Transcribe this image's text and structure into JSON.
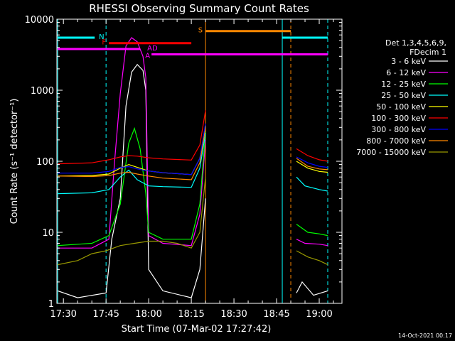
{
  "chart_data": {
    "type": "line",
    "title": "RHESSI Observing Summary Count Rates",
    "xlabel": "Start Time (07-Mar-02 17:27:42)",
    "ylabel": "Count Rate (s⁻¹ detector⁻¹)",
    "yscale": "log",
    "ylim": [
      1,
      10000
    ],
    "xlim": [
      "17:27:42",
      "19:08:00"
    ],
    "xticks": [
      {
        "t": "17:30",
        "label": "17:30"
      },
      {
        "t": "17:45",
        "label": "17:45"
      },
      {
        "t": "18:00",
        "label": "18:00"
      },
      {
        "t": "18:15",
        "label": "18:15"
      },
      {
        "t": "18:30",
        "label": "18:30"
      },
      {
        "t": "18:45",
        "label": "18:45"
      },
      {
        "t": "19:00",
        "label": "19:00"
      }
    ],
    "yticks": [
      {
        "v": 1,
        "label": "1"
      },
      {
        "v": 10,
        "label": "10"
      },
      {
        "v": 100,
        "label": "100"
      },
      {
        "v": 1000,
        "label": "1000"
      },
      {
        "v": 10000,
        "label": "10000"
      }
    ],
    "legend_header": [
      "Det 1,3,4,5,6,9,",
      "FDecim 1"
    ],
    "legend_position": "right",
    "series": [
      {
        "name": "3 - 6 keV",
        "color": "#ffffff",
        "points": [
          [
            "17:28",
            1.5
          ],
          [
            "17:35",
            1.2
          ],
          [
            "17:45",
            1.4
          ],
          [
            "17:47",
            8
          ],
          [
            "17:50",
            30
          ],
          [
            "17:52",
            600
          ],
          [
            "17:54",
            1800
          ],
          [
            "17:56",
            2300
          ],
          [
            "17:58",
            1900
          ],
          [
            "17:59",
            1000
          ],
          [
            "18:00",
            3
          ],
          [
            "18:05",
            1.5
          ],
          [
            "18:15",
            1.2
          ],
          [
            "18:18",
            3
          ],
          [
            "18:20",
            30
          ],
          [
            "18:21",
            null
          ],
          [
            "18:52",
            1.4
          ],
          [
            "18:54",
            2
          ],
          [
            "18:58",
            1.3
          ],
          [
            "19:03",
            1.5
          ]
        ]
      },
      {
        "name": "6 - 12 keV",
        "color": "#ff00ff",
        "points": [
          [
            "17:28",
            6
          ],
          [
            "17:40",
            6
          ],
          [
            "17:46",
            8
          ],
          [
            "17:48",
            100
          ],
          [
            "17:50",
            900
          ],
          [
            "17:52",
            4200
          ],
          [
            "17:54",
            5500
          ],
          [
            "17:56",
            4800
          ],
          [
            "17:58",
            3000
          ],
          [
            "17:59",
            1500
          ],
          [
            "18:00",
            9
          ],
          [
            "18:05",
            7
          ],
          [
            "18:15",
            6.5
          ],
          [
            "18:18",
            18
          ],
          [
            "18:20",
            200
          ],
          [
            "18:21",
            null
          ],
          [
            "18:52",
            8
          ],
          [
            "18:55",
            7
          ],
          [
            "19:00",
            6.8
          ],
          [
            "19:03",
            6.5
          ]
        ]
      },
      {
        "name": "12 - 25 keV",
        "color": "#00ff00",
        "points": [
          [
            "17:28",
            6.5
          ],
          [
            "17:40",
            7
          ],
          [
            "17:46",
            9
          ],
          [
            "17:50",
            25
          ],
          [
            "17:53",
            180
          ],
          [
            "17:55",
            290
          ],
          [
            "17:57",
            150
          ],
          [
            "17:59",
            35
          ],
          [
            "18:00",
            10
          ],
          [
            "18:05",
            8
          ],
          [
            "18:15",
            8
          ],
          [
            "18:18",
            25
          ],
          [
            "18:20",
            260
          ],
          [
            "18:21",
            null
          ],
          [
            "18:52",
            13
          ],
          [
            "18:56",
            10
          ],
          [
            "19:00",
            9.5
          ],
          [
            "19:03",
            9
          ]
        ]
      },
      {
        "name": "25 - 50 keV",
        "color": "#00ffff",
        "points": [
          [
            "17:28",
            35
          ],
          [
            "17:40",
            36
          ],
          [
            "17:46",
            40
          ],
          [
            "17:50",
            60
          ],
          [
            "17:53",
            75
          ],
          [
            "17:56",
            55
          ],
          [
            "18:00",
            45
          ],
          [
            "18:05",
            44
          ],
          [
            "18:15",
            43
          ],
          [
            "18:18",
            80
          ],
          [
            "18:20",
            250
          ],
          [
            "18:21",
            null
          ],
          [
            "18:52",
            60
          ],
          [
            "18:55",
            45
          ],
          [
            "19:00",
            40
          ],
          [
            "19:03",
            38
          ]
        ]
      },
      {
        "name": "50 - 100 keV",
        "color": "#ffff00",
        "points": [
          [
            "17:28",
            62
          ],
          [
            "17:40",
            63
          ],
          [
            "17:46",
            66
          ],
          [
            "17:50",
            80
          ],
          [
            "17:53",
            90
          ],
          [
            "17:56",
            82
          ],
          [
            "18:00",
            73
          ],
          [
            "18:05",
            69
          ],
          [
            "18:15",
            65
          ],
          [
            "18:18",
            110
          ],
          [
            "18:20",
            310
          ],
          [
            "18:21",
            null
          ],
          [
            "18:52",
            100
          ],
          [
            "18:56",
            80
          ],
          [
            "19:00",
            72
          ],
          [
            "19:03",
            70
          ]
        ]
      },
      {
        "name": "100 - 300 keV",
        "color": "#ff0000",
        "points": [
          [
            "17:28",
            92
          ],
          [
            "17:40",
            95
          ],
          [
            "17:46",
            105
          ],
          [
            "17:50",
            115
          ],
          [
            "17:53",
            120
          ],
          [
            "17:56",
            118
          ],
          [
            "18:00",
            112
          ],
          [
            "18:05",
            108
          ],
          [
            "18:15",
            104
          ],
          [
            "18:18",
            170
          ],
          [
            "18:20",
            520
          ],
          [
            "18:21",
            null
          ],
          [
            "18:52",
            150
          ],
          [
            "18:56",
            120
          ],
          [
            "19:00",
            105
          ],
          [
            "19:03",
            100
          ]
        ]
      },
      {
        "name": "300 - 800 keV",
        "color": "#0000ff",
        "points": [
          [
            "17:28",
            68
          ],
          [
            "17:40",
            68
          ],
          [
            "17:46",
            72
          ],
          [
            "17:50",
            82
          ],
          [
            "17:53",
            84
          ],
          [
            "17:56",
            78
          ],
          [
            "18:00",
            73
          ],
          [
            "18:05",
            69
          ],
          [
            "18:15",
            65
          ],
          [
            "18:18",
            110
          ],
          [
            "18:20",
            340
          ],
          [
            "18:21",
            null
          ],
          [
            "18:52",
            115
          ],
          [
            "18:56",
            95
          ],
          [
            "19:00",
            85
          ],
          [
            "19:03",
            82
          ]
        ]
      },
      {
        "name": "800 - 7000 keV",
        "color": "#ff8800",
        "points": [
          [
            "17:28",
            62
          ],
          [
            "17:40",
            61
          ],
          [
            "17:46",
            63
          ],
          [
            "17:50",
            68
          ],
          [
            "17:53",
            70
          ],
          [
            "17:56",
            66
          ],
          [
            "18:00",
            62
          ],
          [
            "18:05",
            58
          ],
          [
            "18:15",
            55
          ],
          [
            "18:18",
            95
          ],
          [
            "18:20",
            290
          ],
          [
            "18:21",
            null
          ],
          [
            "18:52",
            110
          ],
          [
            "18:56",
            85
          ],
          [
            "19:00",
            78
          ],
          [
            "19:03",
            76
          ]
        ]
      },
      {
        "name": "7000 - 15000 keV",
        "color": "#999900",
        "points": [
          [
            "17:28",
            3.5
          ],
          [
            "17:35",
            4
          ],
          [
            "17:40",
            5
          ],
          [
            "17:45",
            5.5
          ],
          [
            "17:50",
            6.5
          ],
          [
            "17:55",
            7
          ],
          [
            "18:00",
            7.5
          ],
          [
            "18:05",
            7.5
          ],
          [
            "18:10",
            7
          ],
          [
            "18:15",
            6
          ],
          [
            "18:18",
            10
          ],
          [
            "18:20",
            60
          ],
          [
            "18:21",
            null
          ],
          [
            "18:52",
            5.5
          ],
          [
            "18:56",
            4.5
          ],
          [
            "19:00",
            4
          ],
          [
            "19:03",
            3.5
          ]
        ]
      }
    ],
    "flag_bars": [
      {
        "label": "N",
        "color": "#00ffff",
        "value": 5500,
        "segments": [
          [
            "17:28",
            "17:41"
          ],
          [
            "18:47",
            "19:03"
          ]
        ]
      },
      {
        "label": "F",
        "color": "#ff0000",
        "value": 4600,
        "segments": [
          [
            "17:46",
            "18:15"
          ]
        ]
      },
      {
        "label": "AD",
        "color": "#ff00ff",
        "value": 3800,
        "segments": [
          [
            "17:28",
            "17:57"
          ]
        ]
      },
      {
        "label": "A",
        "color": "#ff00ff",
        "value": 3200,
        "segments": [
          [
            "18:01",
            "19:03"
          ]
        ]
      },
      {
        "label": "S",
        "color": "#ff8800",
        "value": 6800,
        "segments": [
          [
            "18:20",
            "18:50"
          ]
        ]
      }
    ],
    "vlines": [
      {
        "t": "17:28",
        "color": "#00ffff",
        "dash": "solid"
      },
      {
        "t": "17:45",
        "color": "#00ffff",
        "dash": "dashed"
      },
      {
        "t": "18:20",
        "color": "#ff8800",
        "dash": "solid"
      },
      {
        "t": "18:47",
        "color": "#00ffff",
        "dash": "solid"
      },
      {
        "t": "18:50",
        "color": "#ff8800",
        "dash": "dashed"
      },
      {
        "t": "19:03",
        "color": "#00ffff",
        "dash": "dashed"
      }
    ]
  },
  "timestamp": "14-Oct-2021 00:17"
}
